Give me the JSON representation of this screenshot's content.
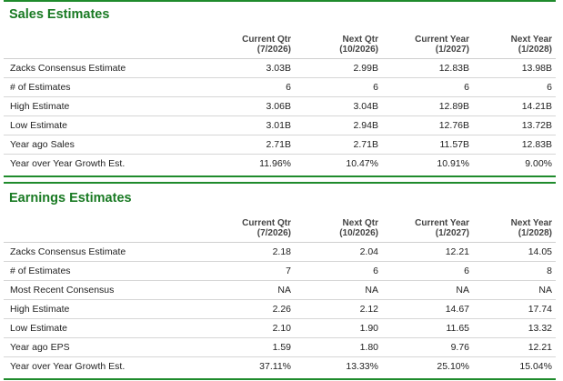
{
  "columns": [
    {
      "line1": "Current Qtr",
      "line2": "(7/2026)"
    },
    {
      "line1": "Next Qtr",
      "line2": "(10/2026)"
    },
    {
      "line1": "Current Year",
      "line2": "(1/2027)"
    },
    {
      "line1": "Next Year",
      "line2": "(1/2028)"
    }
  ],
  "colors": {
    "title": "#197a23",
    "rule": "#1f8b2c"
  },
  "sales": {
    "title": "Sales Estimates",
    "rows": [
      {
        "label": "Zacks Consensus Estimate",
        "values": [
          "3.03B",
          "2.99B",
          "12.83B",
          "13.98B"
        ]
      },
      {
        "label": "# of Estimates",
        "values": [
          "6",
          "6",
          "6",
          "6"
        ]
      },
      {
        "label": "High Estimate",
        "values": [
          "3.06B",
          "3.04B",
          "12.89B",
          "14.21B"
        ]
      },
      {
        "label": "Low Estimate",
        "values": [
          "3.01B",
          "2.94B",
          "12.76B",
          "13.72B"
        ]
      },
      {
        "label": "Year ago Sales",
        "values": [
          "2.71B",
          "2.71B",
          "11.57B",
          "12.83B"
        ]
      },
      {
        "label": "Year over Year Growth Est.",
        "values": [
          "11.96%",
          "10.47%",
          "10.91%",
          "9.00%"
        ]
      }
    ]
  },
  "earnings": {
    "title": "Earnings Estimates",
    "rows": [
      {
        "label": "Zacks Consensus Estimate",
        "values": [
          "2.18",
          "2.04",
          "12.21",
          "14.05"
        ]
      },
      {
        "label": "# of Estimates",
        "values": [
          "7",
          "6",
          "6",
          "8"
        ]
      },
      {
        "label": "Most Recent Consensus",
        "values": [
          "NA",
          "NA",
          "NA",
          "NA"
        ]
      },
      {
        "label": "High Estimate",
        "values": [
          "2.26",
          "2.12",
          "14.67",
          "17.74"
        ]
      },
      {
        "label": "Low Estimate",
        "values": [
          "2.10",
          "1.90",
          "11.65",
          "13.32"
        ]
      },
      {
        "label": "Year ago EPS",
        "values": [
          "1.59",
          "1.80",
          "9.76",
          "12.21"
        ]
      },
      {
        "label": "Year over Year Growth Est.",
        "values": [
          "37.11%",
          "13.33%",
          "25.10%",
          "15.04%"
        ]
      }
    ]
  }
}
